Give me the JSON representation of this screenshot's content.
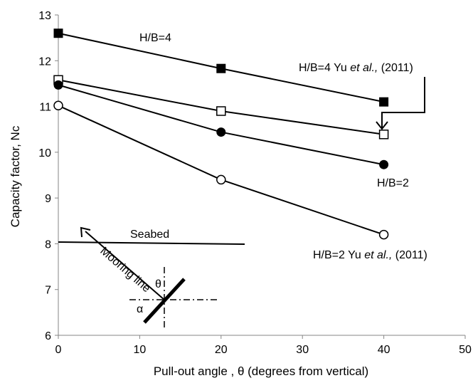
{
  "chart_data": {
    "type": "line",
    "title": "",
    "xlabel": "Pull-out angle , θ (degrees from vertical)",
    "ylabel": "Capacity factor, Nc",
    "xlim": [
      0,
      50
    ],
    "ylim": [
      6,
      13
    ],
    "xticks": [
      0,
      10,
      20,
      30,
      40,
      50
    ],
    "yticks": [
      6,
      7,
      8,
      9,
      10,
      11,
      12,
      13
    ],
    "grid": false,
    "legend": "none",
    "x": [
      0,
      20,
      40
    ],
    "series": [
      {
        "name": "H/B=4",
        "values": [
          12.6,
          11.83,
          11.1
        ],
        "marker": "square-filled"
      },
      {
        "name": "H/B=4 Yu et al., (2011)",
        "values": [
          11.58,
          10.9,
          10.39
        ],
        "marker": "square-open"
      },
      {
        "name": "H/B=2",
        "values": [
          11.47,
          10.44,
          9.73
        ],
        "marker": "circle-filled"
      },
      {
        "name": "H/B=2 Yu et al., (2011)",
        "values": [
          11.02,
          9.4,
          8.2
        ],
        "marker": "circle-open"
      }
    ],
    "annotations": {
      "hb4": "H/B=4",
      "hb4_yu_a": "H/B=4 Yu ",
      "hb4_yu_b": "et al.,",
      "hb4_yu_c": " (2011)",
      "hb2": "H/B=2",
      "hb2_yu_a": "H/B=2 Yu ",
      "hb2_yu_b": "et al.,",
      "hb2_yu_c": " (2011)",
      "seabed": "Seabed",
      "mooring": "Mooring line",
      "theta": "θ",
      "alpha": "α"
    },
    "colors": {
      "line": "#000000",
      "background": "#ffffff"
    }
  }
}
